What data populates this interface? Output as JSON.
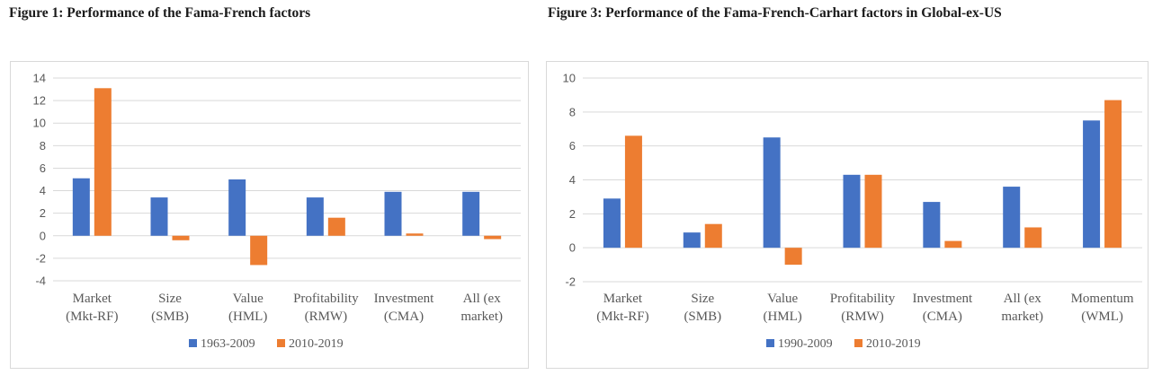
{
  "colors": {
    "series1": "#4472C4",
    "series2": "#ED7D31",
    "gridline": "#d9d9d9",
    "axis_text": "#595959",
    "negative_tick": "#C00000"
  },
  "chart_data": [
    {
      "type": "bar",
      "title": "Figure 1: Performance of the Fama-French factors",
      "categories": [
        [
          "Market",
          "(Mkt-RF)"
        ],
        [
          "Size",
          "(SMB)"
        ],
        [
          "Value",
          "(HML)"
        ],
        [
          "Profitability",
          "(RMW)"
        ],
        [
          "Investment",
          "(CMA)"
        ],
        [
          "All (ex",
          "market)"
        ]
      ],
      "series": [
        {
          "name": "1963-2009",
          "values": [
            5.1,
            3.4,
            5.0,
            3.4,
            3.9,
            3.9
          ]
        },
        {
          "name": "2010-2019",
          "values": [
            13.1,
            -0.4,
            -2.6,
            1.6,
            0.2,
            -0.3
          ]
        }
      ],
      "ylim": [
        -4,
        14
      ],
      "yticks": [
        -4,
        -2,
        0,
        2,
        4,
        6,
        8,
        10,
        12,
        14
      ],
      "ytick_labels": [
        "-4",
        "-2",
        "0",
        "2",
        "4",
        "6",
        "8",
        "10",
        "12",
        "14"
      ],
      "grid": true,
      "legend": "bottom",
      "xlabel": "",
      "ylabel": ""
    },
    {
      "type": "bar",
      "title": "Figure 3: Performance of the Fama-French-Carhart factors in Global-ex-US",
      "categories": [
        [
          "Market",
          "(Mkt-RF)"
        ],
        [
          "Size",
          "(SMB)"
        ],
        [
          "Value",
          "(HML)"
        ],
        [
          "Profitability",
          "(RMW)"
        ],
        [
          "Investment",
          "(CMA)"
        ],
        [
          "All (ex",
          "market)"
        ],
        [
          "Momentum",
          "(WML)"
        ]
      ],
      "series": [
        {
          "name": "1990-2009",
          "values": [
            2.9,
            0.9,
            6.5,
            4.3,
            2.7,
            3.6,
            7.5
          ]
        },
        {
          "name": "2010-2019",
          "values": [
            6.6,
            1.4,
            -1.0,
            4.3,
            0.4,
            1.2,
            8.7
          ]
        }
      ],
      "ylim": [
        -2,
        10
      ],
      "yticks": [
        -2,
        0,
        2,
        4,
        6,
        8,
        10
      ],
      "ytick_labels": [
        "-2",
        "0",
        "2",
        "4",
        "6",
        "8",
        "10"
      ],
      "grid": true,
      "legend": "bottom",
      "xlabel": "",
      "ylabel": ""
    }
  ]
}
